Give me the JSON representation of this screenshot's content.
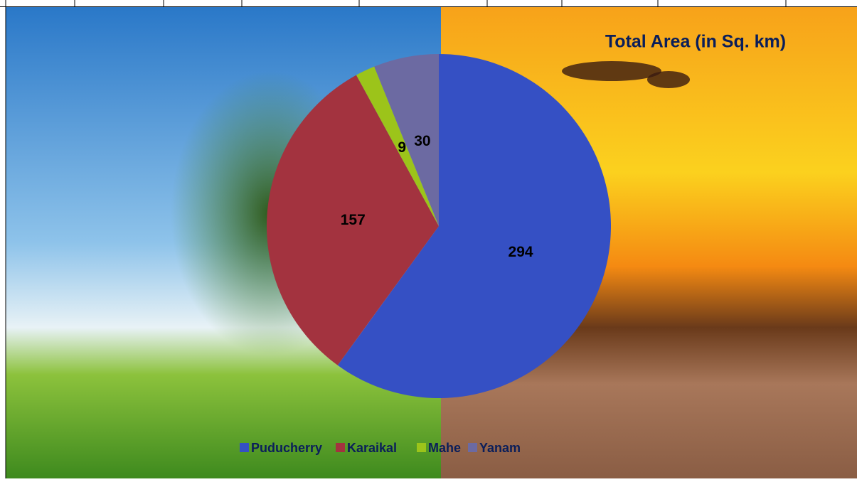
{
  "chart_data": {
    "type": "pie",
    "title": "Total  Area (in Sq. km)",
    "categories": [
      "Puducherry",
      "Karaikal",
      "Mahe",
      "Yanam"
    ],
    "values": [
      294,
      157,
      9,
      30
    ],
    "colors": [
      "#3550c4",
      "#a3333f",
      "#9cc41a",
      "#6c6aa2"
    ],
    "legend": "bottom"
  }
}
